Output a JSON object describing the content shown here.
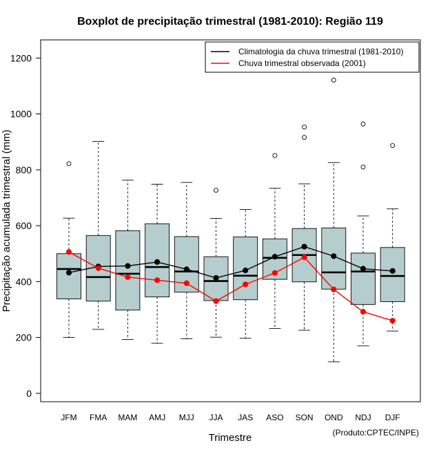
{
  "chart_data": {
    "type": "boxplot",
    "title": "Boxplot de precipitação trimestral (1981-2010): Região 119",
    "xlabel": "Trimestre",
    "ylabel": "Precipitação acumulada trimestral (mm)",
    "credit": "(Produto:CPTEC/INPE)",
    "ylim": [
      -30,
      1265
    ],
    "yticks": [
      0,
      200,
      400,
      600,
      800,
      1000,
      1200
    ],
    "categories": [
      "JFM",
      "FMA",
      "MAM",
      "AMJ",
      "MJJ",
      "JJA",
      "JAS",
      "ASO",
      "SON",
      "OND",
      "NDJ",
      "DJF"
    ],
    "boxes": [
      {
        "whisker_low": 200,
        "q1": 338,
        "median": 445,
        "q3": 500,
        "whisker_high": 627,
        "outliers": [
          822
        ]
      },
      {
        "whisker_low": 229,
        "q1": 330,
        "median": 416,
        "q3": 565,
        "whisker_high": 902,
        "outliers": []
      },
      {
        "whisker_low": 193,
        "q1": 298,
        "median": 428,
        "q3": 582,
        "whisker_high": 763,
        "outliers": []
      },
      {
        "whisker_low": 179,
        "q1": 345,
        "median": 452,
        "q3": 607,
        "whisker_high": 748,
        "outliers": []
      },
      {
        "whisker_low": 195,
        "q1": 362,
        "median": 436,
        "q3": 561,
        "whisker_high": 755,
        "outliers": []
      },
      {
        "whisker_low": 201,
        "q1": 332,
        "median": 402,
        "q3": 489,
        "whisker_high": 626,
        "outliers": [
          727
        ]
      },
      {
        "whisker_low": 197,
        "q1": 335,
        "median": 421,
        "q3": 560,
        "whisker_high": 658,
        "outliers": []
      },
      {
        "whisker_low": 232,
        "q1": 408,
        "median": 485,
        "q3": 553,
        "whisker_high": 734,
        "outliers": [
          851
        ]
      },
      {
        "whisker_low": 226,
        "q1": 399,
        "median": 495,
        "q3": 590,
        "whisker_high": 750,
        "outliers": [
          916,
          953
        ]
      },
      {
        "whisker_low": 113,
        "q1": 373,
        "median": 433,
        "q3": 592,
        "whisker_high": 826,
        "outliers": [
          1121
        ]
      },
      {
        "whisker_low": 170,
        "q1": 318,
        "median": 436,
        "q3": 502,
        "whisker_high": 635,
        "outliers": [
          810,
          964
        ]
      },
      {
        "whisker_low": 223,
        "q1": 328,
        "median": 420,
        "q3": 522,
        "whisker_high": 660,
        "outliers": [
          887
        ]
      }
    ],
    "series": [
      {
        "name": "Climatologia da chuva trimestral (1981-2010)",
        "color": "#000000",
        "values": [
          432,
          454,
          456,
          470,
          444,
          413,
          440,
          489,
          525,
          491,
          446,
          438
        ]
      },
      {
        "name": "Chuva trimestral observada (2001)",
        "color": "#ff0000",
        "values": [
          506,
          448,
          416,
          405,
          394,
          330,
          390,
          431,
          487,
          372,
          292,
          260
        ]
      }
    ],
    "box_fill": "#b5cdcc",
    "legend_position": "top-right"
  }
}
